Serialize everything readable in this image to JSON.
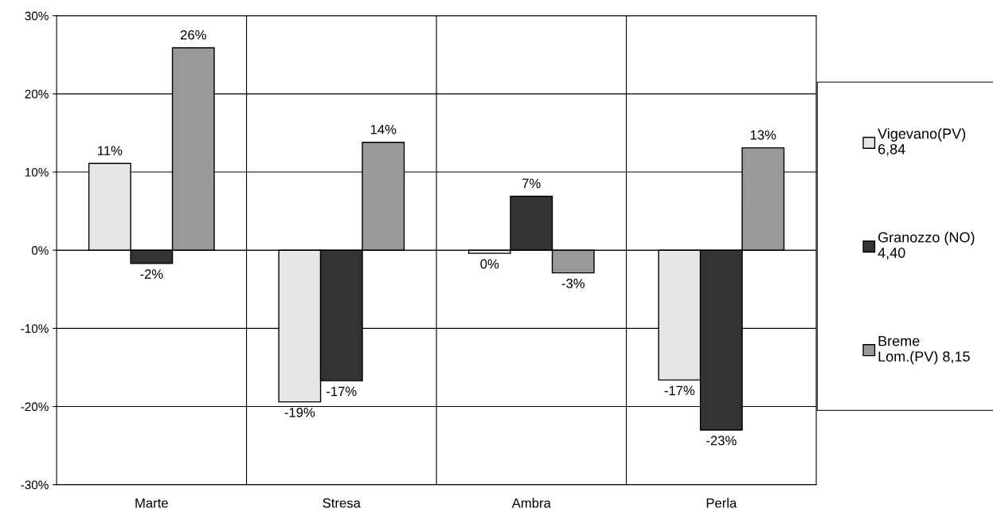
{
  "chart_data": {
    "type": "bar",
    "categories": [
      "Marte",
      "Stresa",
      "Ambra",
      "Perla"
    ],
    "series": [
      {
        "name": "Vigevano(PV)\n6,84",
        "color": "#e6e6e6",
        "values": [
          11.1,
          -19.4,
          -0.4,
          -16.6
        ],
        "value_labels": [
          "11%",
          "-19%",
          "0%",
          "-17%"
        ]
      },
      {
        "name": "Granozzo (NO)\n4,40",
        "color": "#333333",
        "values": [
          -1.7,
          -16.7,
          6.9,
          -23.0
        ],
        "value_labels": [
          "-2%",
          "-17%",
          "7%",
          "-23%"
        ]
      },
      {
        "name": "Breme\nLom.(PV) 8,15",
        "color": "#999999",
        "values": [
          25.9,
          13.8,
          -2.9,
          13.1
        ],
        "value_labels": [
          "26%",
          "14%",
          "-3%",
          "13%"
        ]
      }
    ],
    "ylim": [
      -30,
      30
    ],
    "yticks": [
      {
        "value": -30,
        "label": "-30%"
      },
      {
        "value": -20,
        "label": "-20%"
      },
      {
        "value": -10,
        "label": "-10%"
      },
      {
        "value": 0,
        "label": "0%"
      },
      {
        "value": 10,
        "label": "10%"
      },
      {
        "value": 20,
        "label": "20%"
      },
      {
        "value": 30,
        "label": "30%"
      }
    ],
    "grid": true,
    "legend": "right"
  }
}
